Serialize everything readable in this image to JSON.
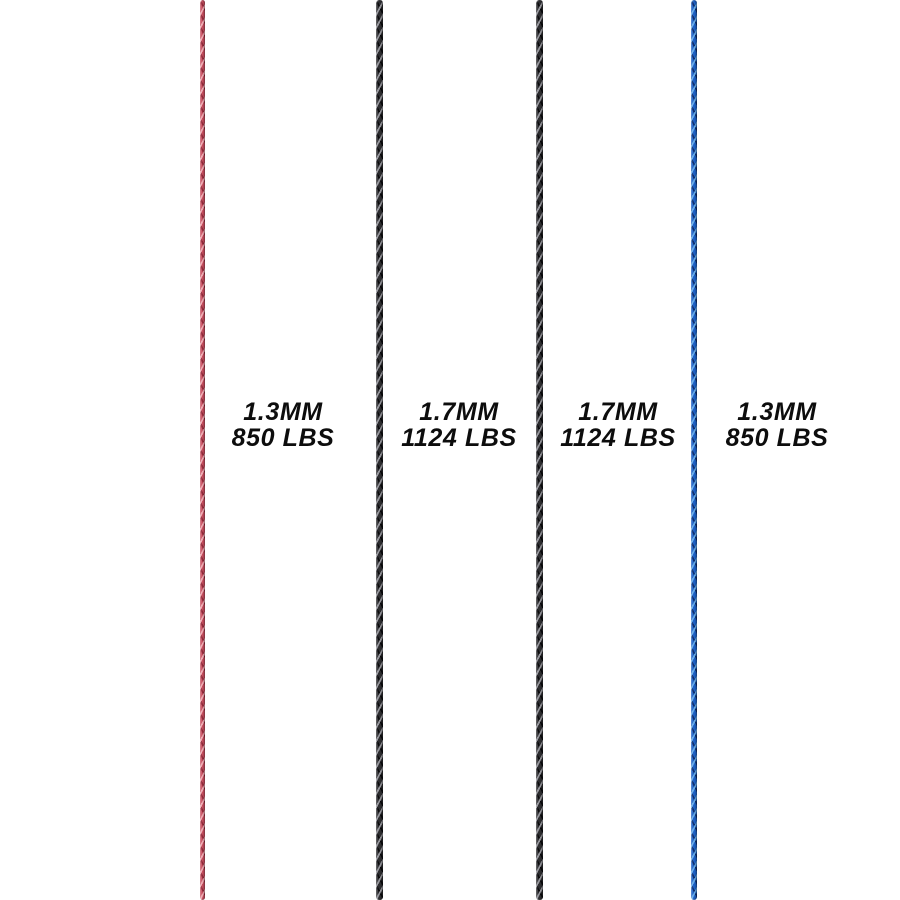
{
  "image": {
    "description": "Four vertical braided cord samples on a white background with size and breaking-strength labels",
    "background": "#ffffff",
    "text_color": "#0d0d0d"
  },
  "cords": [
    {
      "name": "pink-red braided cord",
      "diameter": "1.3MM",
      "strength": "850 LBS",
      "colors": {
        "base": "#c94f60",
        "light": "#efa9b2",
        "dark": "#93293a"
      }
    },
    {
      "name": "black braided cord left",
      "diameter": "1.7MM",
      "strength": "1124 LBS",
      "colors": {
        "base": "#2d2d30",
        "light": "#95959b",
        "dark": "#0a0a0c"
      }
    },
    {
      "name": "black braided cord right",
      "diameter": "1.7MM",
      "strength": "1124 LBS",
      "colors": {
        "base": "#2d2d30",
        "light": "#95959b",
        "dark": "#0a0a0c"
      }
    },
    {
      "name": "blue braided cord",
      "diameter": "1.3MM",
      "strength": "850 LBS",
      "colors": {
        "base": "#1e62c6",
        "light": "#66aae8",
        "dark": "#0d2e70"
      }
    }
  ]
}
